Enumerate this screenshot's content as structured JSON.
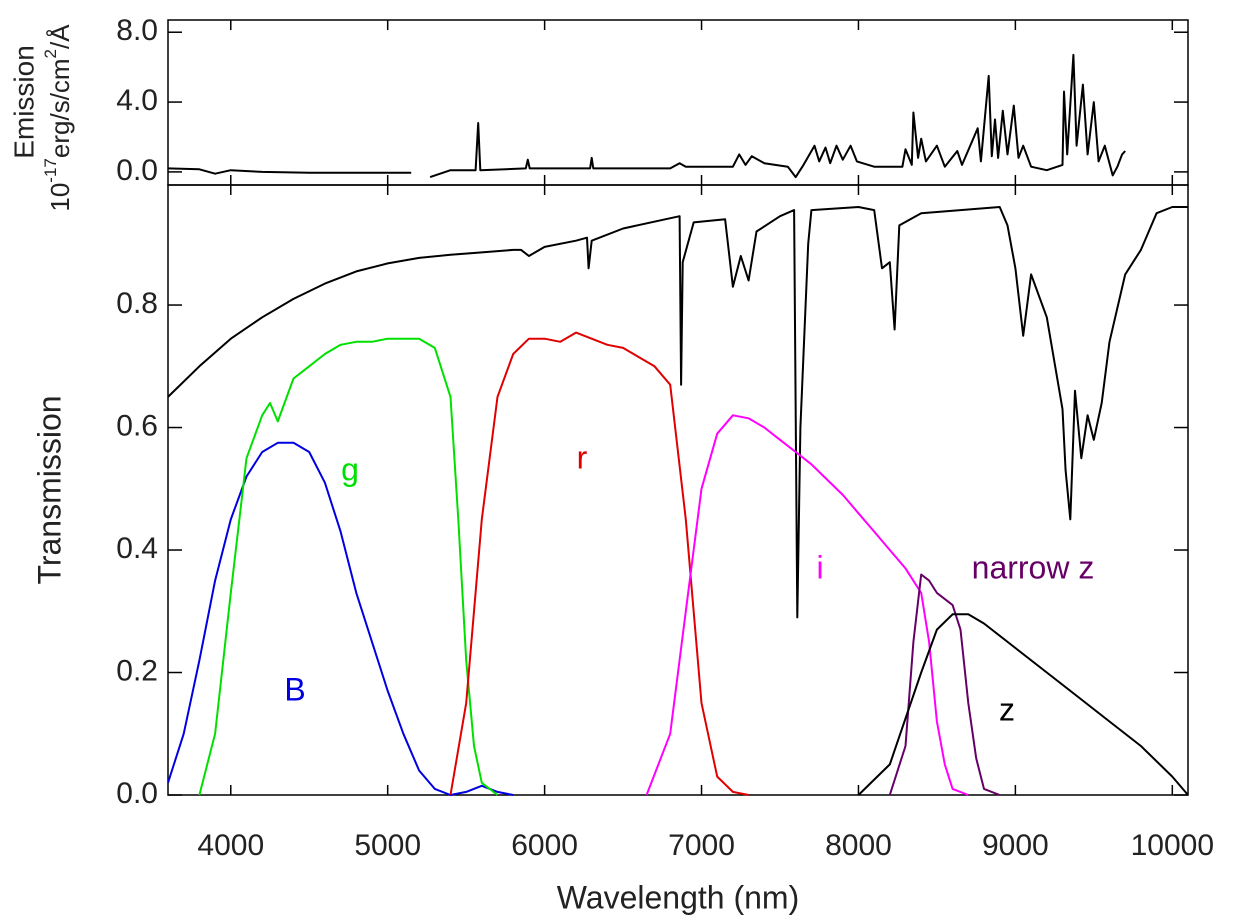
{
  "chart_data": [
    {
      "type": "line",
      "ylabel": "Emission",
      "yunits": [
        "10",
        "-17",
        "erg/s/cm",
        "2",
        "/Å"
      ],
      "xlim": [
        3600,
        10100
      ],
      "xticks": [
        4000,
        5000,
        6000,
        7000,
        8000,
        9000,
        10000
      ],
      "ylim": [
        -0.75,
        8.7
      ],
      "yticks": [
        {
          "value": 0,
          "label": "0.0"
        },
        {
          "value": 4,
          "label": "4.0"
        },
        {
          "value": 8,
          "label": "8.0"
        }
      ],
      "series": [
        {
          "color": "#000000",
          "x": [
            3600,
            3800,
            3900,
            4000,
            4200,
            4500,
            4800,
            5150,
            5200,
            5270,
            5400,
            5560,
            5577,
            5590,
            5880,
            5893,
            5905,
            6290,
            6300,
            6310,
            6800,
            6860,
            6900,
            7200,
            7240,
            7280,
            7320,
            7400,
            7550,
            7600,
            7650,
            7720,
            7750,
            7790,
            7820,
            7860,
            7900,
            7950,
            7990,
            8100,
            8280,
            8300,
            8340,
            8350,
            8380,
            8400,
            8430,
            8500,
            8550,
            8630,
            8660,
            8760,
            8780,
            8830,
            8850,
            8870,
            8890,
            8920,
            8950,
            8990,
            9020,
            9050,
            9100,
            9200,
            9300,
            9310,
            9330,
            9370,
            9390,
            9430,
            9460,
            9500,
            9530,
            9570,
            9620,
            9650,
            9680,
            9700
          ],
          "values": [
            0.2,
            0.15,
            -0.1,
            0.1,
            0.0,
            -0.05,
            -0.05,
            -0.05,
            null,
            -0.3,
            0.1,
            0.1,
            2.8,
            0.1,
            0.2,
            0.7,
            0.2,
            0.2,
            0.8,
            0.2,
            0.2,
            0.5,
            0.3,
            0.3,
            1.0,
            0.4,
            0.9,
            0.5,
            0.3,
            -0.3,
            0.4,
            1.5,
            0.6,
            1.4,
            0.5,
            1.5,
            0.7,
            1.5,
            0.6,
            0.3,
            0.3,
            1.3,
            0.4,
            3.4,
            0.8,
            1.9,
            0.6,
            1.5,
            0.3,
            1.2,
            0.4,
            2.5,
            0.6,
            5.5,
            0.9,
            3.0,
            0.8,
            3.5,
            1.0,
            3.8,
            0.8,
            1.5,
            0.3,
            0.1,
            0.4,
            4.6,
            1.0,
            6.7,
            1.5,
            5.0,
            1.0,
            4.0,
            0.6,
            1.5,
            -0.2,
            0.3,
            1.0,
            1.2
          ]
        }
      ]
    },
    {
      "type": "line",
      "xlabel": "Wavelength (nm)",
      "ylabel": "Transmission",
      "xlim": [
        3600,
        10100
      ],
      "xticks": [
        4000,
        5000,
        6000,
        7000,
        8000,
        9000,
        10000
      ],
      "ylim": [
        0,
        0.996
      ],
      "yticks": [
        {
          "value": 0,
          "label": "0.0"
        },
        0.2,
        0.4,
        0.6,
        0.8
      ],
      "series": [
        {
          "color": "#000000",
          "x": [
            3600,
            3800,
            4000,
            4200,
            4400,
            4600,
            4800,
            5000,
            5200,
            5400,
            5600,
            5800,
            5850,
            5900,
            6000,
            6200,
            6270,
            6280,
            6300,
            6500,
            6860,
            6870,
            6880,
            6950,
            7150,
            7200,
            7250,
            7300,
            7350,
            7500,
            7590,
            7610,
            7630,
            7680,
            7700,
            8000,
            8100,
            8150,
            8200,
            8230,
            8260,
            8400,
            8900,
            8950,
            9000,
            9050,
            9100,
            9200,
            9300,
            9320,
            9350,
            9380,
            9420,
            9460,
            9500,
            9550,
            9600,
            9700,
            9800,
            9900,
            10000,
            10100
          ],
          "values": [
            0.65,
            0.7,
            0.745,
            0.78,
            0.81,
            0.835,
            0.855,
            0.868,
            0.877,
            0.882,
            0.886,
            0.89,
            0.89,
            0.88,
            0.895,
            0.905,
            0.91,
            0.86,
            0.905,
            0.925,
            0.945,
            0.67,
            0.87,
            0.935,
            0.94,
            0.83,
            0.88,
            0.84,
            0.92,
            0.945,
            0.955,
            0.29,
            0.6,
            0.9,
            0.955,
            0.96,
            0.955,
            0.86,
            0.87,
            0.76,
            0.93,
            0.95,
            0.96,
            0.93,
            0.86,
            0.75,
            0.85,
            0.78,
            0.63,
            0.53,
            0.45,
            0.66,
            0.55,
            0.62,
            0.58,
            0.64,
            0.74,
            0.85,
            0.89,
            0.95,
            0.96,
            0.96
          ]
        },
        {
          "name": "B",
          "color": "#0000e0",
          "x": [
            3600,
            3700,
            3800,
            3900,
            4000,
            4100,
            4200,
            4300,
            4400,
            4500,
            4600,
            4700,
            4800,
            4900,
            5000,
            5100,
            5200,
            5300,
            5400,
            5500,
            5600,
            5700,
            5800
          ],
          "values": [
            0.02,
            0.1,
            0.22,
            0.35,
            0.45,
            0.52,
            0.56,
            0.575,
            0.575,
            0.56,
            0.51,
            0.43,
            0.33,
            0.25,
            0.17,
            0.1,
            0.04,
            0.01,
            0.0,
            0.005,
            0.015,
            0.005,
            0.0
          ]
        },
        {
          "name": "g",
          "color": "#00e000",
          "x": [
            3800,
            3900,
            4000,
            4100,
            4200,
            4250,
            4300,
            4400,
            4500,
            4600,
            4700,
            4800,
            4900,
            5000,
            5100,
            5200,
            5300,
            5400,
            5450,
            5500,
            5550,
            5600,
            5700
          ],
          "values": [
            0.0,
            0.1,
            0.33,
            0.55,
            0.62,
            0.64,
            0.61,
            0.68,
            0.7,
            0.72,
            0.735,
            0.74,
            0.74,
            0.745,
            0.745,
            0.745,
            0.73,
            0.65,
            0.45,
            0.22,
            0.08,
            0.02,
            0.0
          ]
        },
        {
          "name": "r",
          "color": "#e00000",
          "x": [
            5400,
            5500,
            5600,
            5700,
            5800,
            5900,
            6000,
            6100,
            6200,
            6300,
            6400,
            6500,
            6600,
            6700,
            6800,
            6900,
            7000,
            7100,
            7200,
            7300
          ],
          "values": [
            0.0,
            0.15,
            0.45,
            0.65,
            0.72,
            0.745,
            0.745,
            0.74,
            0.755,
            0.745,
            0.735,
            0.73,
            0.715,
            0.7,
            0.67,
            0.45,
            0.15,
            0.03,
            0.005,
            0.0
          ]
        },
        {
          "name": "i",
          "color": "#ff00ff",
          "x": [
            6650,
            6800,
            6900,
            7000,
            7100,
            7200,
            7300,
            7400,
            7500,
            7600,
            7700,
            7800,
            7900,
            8000,
            8100,
            8200,
            8300,
            8400,
            8450,
            8500,
            8550,
            8600,
            8700
          ],
          "values": [
            0.0,
            0.1,
            0.3,
            0.5,
            0.59,
            0.62,
            0.615,
            0.6,
            0.58,
            0.56,
            0.54,
            0.515,
            0.49,
            0.46,
            0.43,
            0.4,
            0.37,
            0.33,
            0.25,
            0.12,
            0.05,
            0.01,
            0.0
          ]
        },
        {
          "name": "narrow z",
          "color": "#660066",
          "x": [
            8200,
            8300,
            8350,
            8400,
            8450,
            8500,
            8600,
            8650,
            8700,
            8750,
            8800,
            8900
          ],
          "values": [
            0.0,
            0.08,
            0.25,
            0.36,
            0.35,
            0.33,
            0.31,
            0.27,
            0.15,
            0.06,
            0.01,
            0.0
          ]
        },
        {
          "name": "z",
          "color": "#000000",
          "x": [
            8000,
            8200,
            8400,
            8500,
            8600,
            8700,
            8800,
            9000,
            9200,
            9400,
            9600,
            9800,
            10000,
            10100
          ],
          "values": [
            0.0,
            0.05,
            0.2,
            0.27,
            0.295,
            0.295,
            0.28,
            0.24,
            0.2,
            0.16,
            0.12,
            0.08,
            0.03,
            0.0
          ]
        }
      ]
    }
  ]
}
